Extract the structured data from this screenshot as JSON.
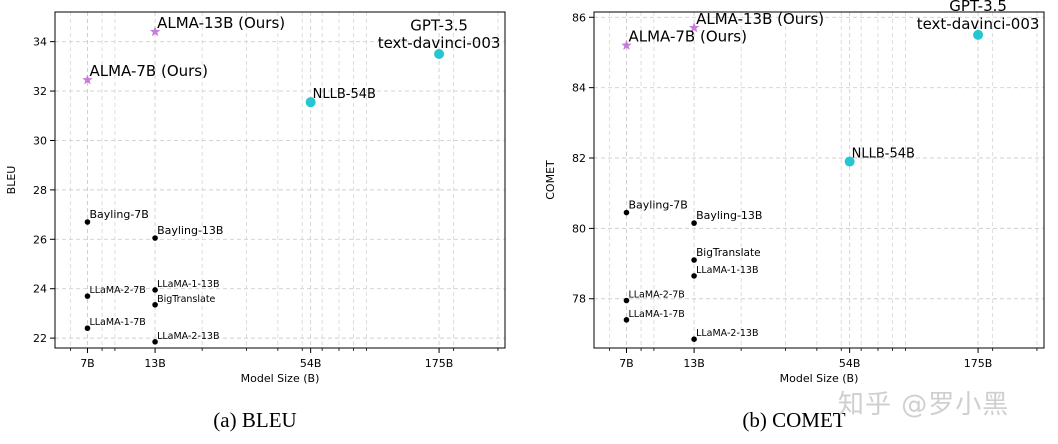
{
  "chart_data": [
    {
      "type": "scatter",
      "xlabel": "Model Size (B)",
      "ylabel": "BLEU",
      "xscale": "log",
      "xlim": [
        5.2,
        320
      ],
      "ylim": [
        21.6,
        35.2
      ],
      "xticks": [
        7,
        13,
        54,
        175
      ],
      "xtick_labels": [
        "7B",
        "13B",
        "54B",
        "175B"
      ],
      "yticks": [
        22,
        24,
        26,
        28,
        30,
        32,
        34
      ],
      "grid": true,
      "caption": "(a) BLEU",
      "points": [
        {
          "label": "ALMA-13B (Ours)",
          "x": 13,
          "y": 34.4,
          "marker": "star",
          "color": "#c77ddb",
          "size": "large"
        },
        {
          "label": "ALMA-7B (Ours)",
          "x": 7,
          "y": 32.45,
          "marker": "star",
          "color": "#c77ddb",
          "size": "large"
        },
        {
          "label": "GPT-3.5\ntext-davinci-003",
          "x": 175,
          "y": 33.5,
          "marker": "circle",
          "color": "#25c6d0",
          "size": "large"
        },
        {
          "label": "NLLB-54B",
          "x": 54,
          "y": 31.55,
          "marker": "circle",
          "color": "#25c6d0",
          "size": "large"
        },
        {
          "label": "Bayling-7B",
          "x": 7,
          "y": 26.7,
          "marker": "dot",
          "color": "#000000",
          "size": "medium"
        },
        {
          "label": "Bayling-13B",
          "x": 13,
          "y": 26.05,
          "marker": "dot",
          "color": "#000000",
          "size": "medium"
        },
        {
          "label": "LLaMA-1-13B",
          "x": 13,
          "y": 23.95,
          "marker": "dot",
          "color": "#000000",
          "size": "small"
        },
        {
          "label": "LLaMA-2-7B",
          "x": 7,
          "y": 23.7,
          "marker": "dot",
          "color": "#000000",
          "size": "small"
        },
        {
          "label": "BigTranslate",
          "x": 13,
          "y": 23.35,
          "marker": "dot",
          "color": "#000000",
          "size": "small"
        },
        {
          "label": "LLaMA-1-7B",
          "x": 7,
          "y": 22.4,
          "marker": "dot",
          "color": "#000000",
          "size": "small"
        },
        {
          "label": "LLaMA-2-13B",
          "x": 13,
          "y": 21.85,
          "marker": "dot",
          "color": "#000000",
          "size": "small"
        }
      ]
    },
    {
      "type": "scatter",
      "xlabel": "Model Size (B)",
      "ylabel": "COMET",
      "xscale": "log",
      "xlim": [
        5.2,
        320
      ],
      "ylim": [
        76.6,
        86.15
      ],
      "xticks": [
        7,
        13,
        54,
        175
      ],
      "xtick_labels": [
        "7B",
        "13B",
        "54B",
        "175B"
      ],
      "yticks": [
        78,
        80,
        82,
        84,
        86
      ],
      "grid": true,
      "caption": "(b) COMET",
      "points": [
        {
          "label": "ALMA-13B (Ours)",
          "x": 13,
          "y": 85.7,
          "marker": "star",
          "color": "#c77ddb",
          "size": "large"
        },
        {
          "label": "ALMA-7B (Ours)",
          "x": 7,
          "y": 85.2,
          "marker": "star",
          "color": "#c77ddb",
          "size": "large"
        },
        {
          "label": "GPT-3.5\ntext-davinci-003",
          "x": 175,
          "y": 85.5,
          "marker": "circle",
          "color": "#25c6d0",
          "size": "large"
        },
        {
          "label": "NLLB-54B",
          "x": 54,
          "y": 81.9,
          "marker": "circle",
          "color": "#25c6d0",
          "size": "large"
        },
        {
          "label": "Bayling-7B",
          "x": 7,
          "y": 80.45,
          "marker": "dot",
          "color": "#000000",
          "size": "medium"
        },
        {
          "label": "Bayling-13B",
          "x": 13,
          "y": 80.15,
          "marker": "dot",
          "color": "#000000",
          "size": "medium"
        },
        {
          "label": "BigTranslate",
          "x": 13,
          "y": 79.1,
          "marker": "dot",
          "color": "#000000",
          "size": "medium"
        },
        {
          "label": "LLaMA-1-13B",
          "x": 13,
          "y": 78.65,
          "marker": "dot",
          "color": "#000000",
          "size": "small"
        },
        {
          "label": "LLaMA-2-7B",
          "x": 7,
          "y": 77.95,
          "marker": "dot",
          "color": "#000000",
          "size": "small"
        },
        {
          "label": "LLaMA-1-7B",
          "x": 7,
          "y": 77.4,
          "marker": "dot",
          "color": "#000000",
          "size": "small"
        },
        {
          "label": "LLaMA-2-13B",
          "x": 13,
          "y": 76.85,
          "marker": "dot",
          "color": "#000000",
          "size": "small"
        }
      ]
    }
  ],
  "watermark": "知乎 @罗小黑"
}
